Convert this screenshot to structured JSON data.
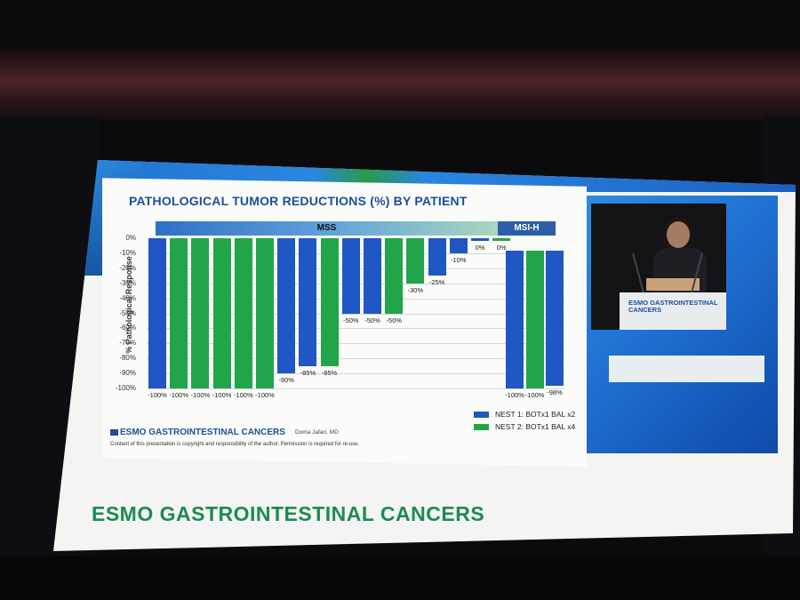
{
  "slide": {
    "title": "PATHOLOGICAL TUMOR REDUCTIONS (%) BY PATIENT",
    "footer_logo": "ESMO GASTROINTESTINAL CANCERS",
    "footer_author": "Doma Jafari, MD",
    "footer_copyright": "Content of this presentation is copyright and responsibility of the author. Permission is required for re-use.",
    "big_brand": "ESMO GASTROINTESTINAL CANCERS",
    "podium_text_1": "ESMO GASTROINTESTINAL",
    "podium_text_2": "CANCERS"
  },
  "chart_data": {
    "type": "bar",
    "title": "PATHOLOGICAL TUMOR REDUCTIONS (%) BY PATIENT",
    "ylabel": "% Pathological Response",
    "xlabel": "",
    "ylim": [
      -100,
      0
    ],
    "yticks": [
      "0%",
      "-10%",
      "-20%",
      "-30%",
      "-40%",
      "-50%",
      "-60%",
      "-70%",
      "-80%",
      "-90%",
      "-100%"
    ],
    "groups": [
      {
        "name": "MSS",
        "range": [
          0,
          16
        ]
      },
      {
        "name": "MSI-H",
        "range": [
          17,
          19
        ]
      }
    ],
    "values": [
      -100,
      -100,
      -100,
      -100,
      -100,
      -100,
      -90,
      -85,
      -85,
      -50,
      -50,
      -50,
      -30,
      -25,
      -10,
      0,
      0,
      -100,
      -100,
      -98
    ],
    "value_labels": [
      "-100%",
      "-100%",
      "-100%",
      "-100%",
      "-100%",
      "-100%",
      "-90%",
      "-85%",
      "-85%",
      "-50%",
      "-50%",
      "-50%",
      "-30%",
      "-25%",
      "-10%",
      "0%",
      "0%",
      "-100%",
      "-100%",
      "-98%"
    ],
    "series_index": [
      0,
      1,
      1,
      1,
      1,
      1,
      0,
      0,
      1,
      0,
      0,
      1,
      1,
      0,
      0,
      0,
      1,
      0,
      1,
      0
    ],
    "series": [
      {
        "name": "NEST 1: BOTx1 BAL x2",
        "color": "#1f57c4"
      },
      {
        "name": "NEST 2: BOTx1 BAL x4",
        "color": "#22a54a"
      }
    ],
    "legend_position": "bottom-right",
    "grid": true
  }
}
